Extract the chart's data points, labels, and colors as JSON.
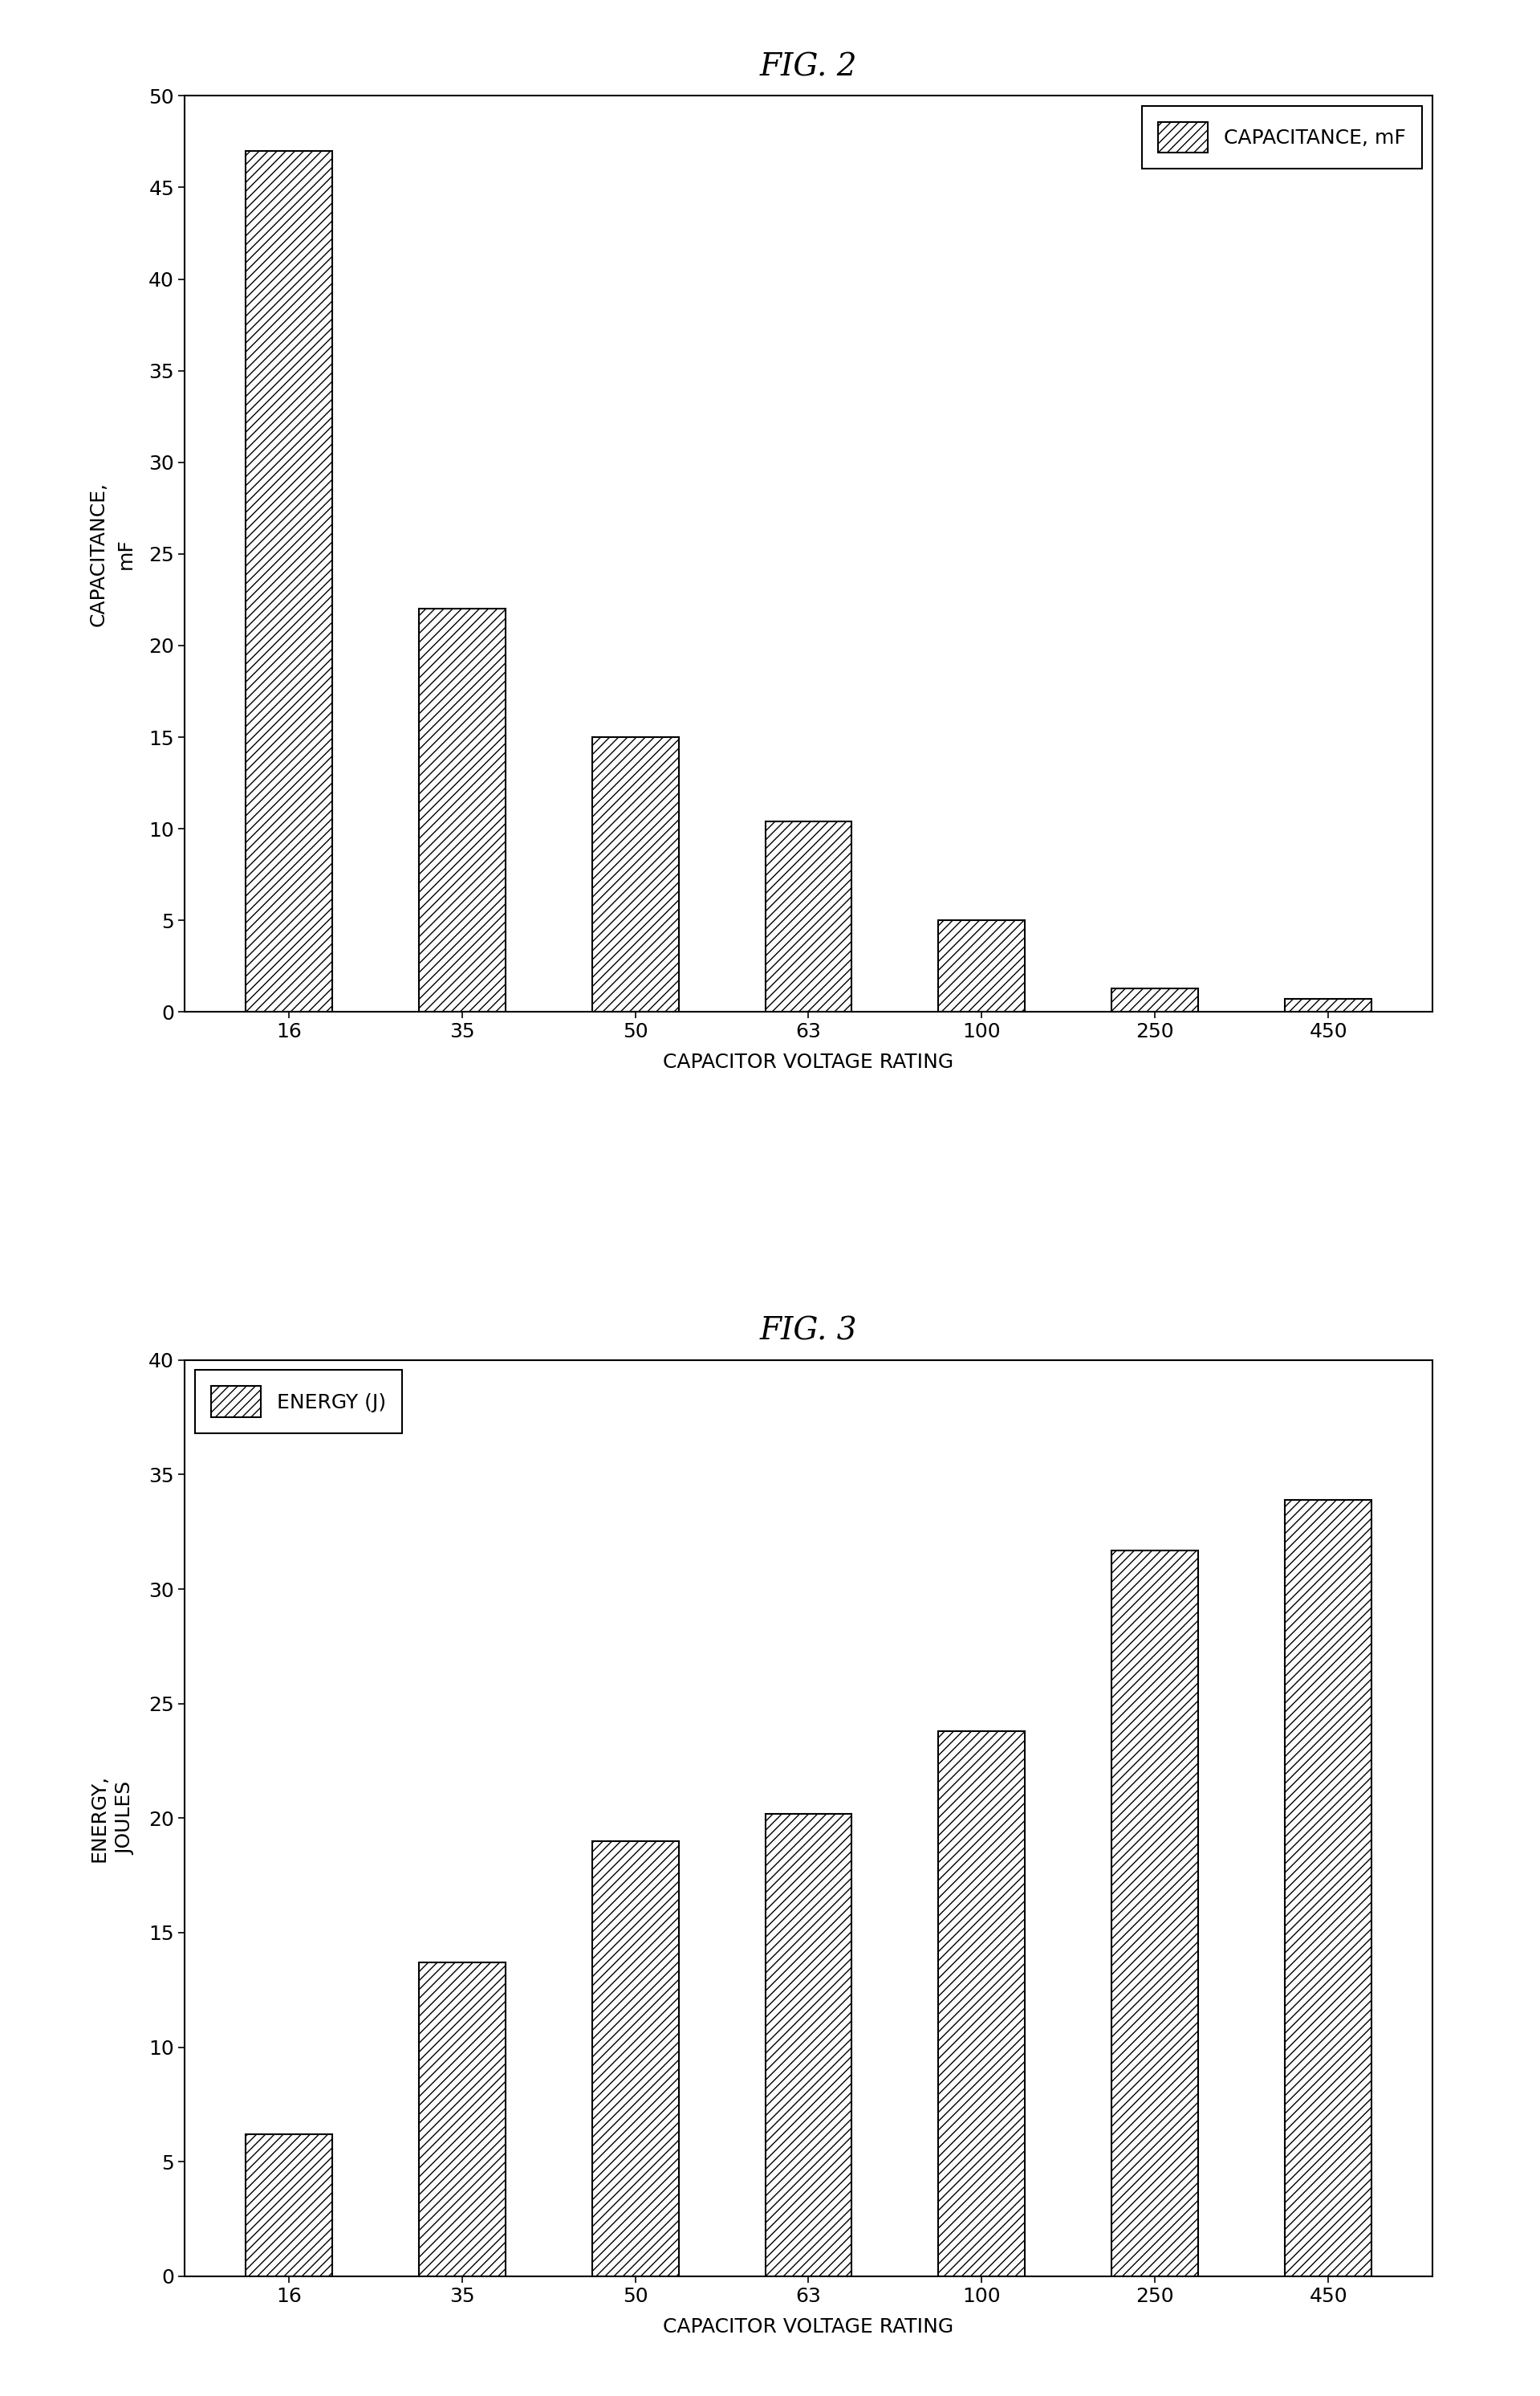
{
  "fig2": {
    "title": "FIG. 2",
    "categories": [
      "16",
      "35",
      "50",
      "63",
      "100",
      "250",
      "450"
    ],
    "values": [
      47,
      22,
      15,
      10.4,
      5.0,
      1.3,
      0.7
    ],
    "ylabel": "CAPACITANCE,\nmF",
    "xlabel": "CAPACITOR VOLTAGE RATING",
    "ylim": [
      0,
      50
    ],
    "yticks": [
      0,
      5,
      10,
      15,
      20,
      25,
      30,
      35,
      40,
      45,
      50
    ],
    "legend_label": "CAPACITANCE, mF",
    "legend_loc": "upper right",
    "hatch": "///",
    "bar_color": "white",
    "bar_edgecolor": "black"
  },
  "fig3": {
    "title": "FIG. 3",
    "categories": [
      "16",
      "35",
      "50",
      "63",
      "100",
      "250",
      "450"
    ],
    "values": [
      6.2,
      13.7,
      19.0,
      20.2,
      23.8,
      31.7,
      33.9
    ],
    "ylabel": "ENERGY,\nJOULES",
    "xlabel": "CAPACITOR VOLTAGE RATING",
    "ylim": [
      0,
      40
    ],
    "yticks": [
      0,
      5,
      10,
      15,
      20,
      25,
      30,
      35,
      40
    ],
    "legend_label": "ENERGY (J)",
    "legend_loc": "upper left",
    "hatch": "///",
    "bar_color": "white",
    "bar_edgecolor": "black"
  },
  "background_color": "#ffffff",
  "title_fontsize": 28,
  "label_fontsize": 18,
  "tick_fontsize": 18,
  "legend_fontsize": 18,
  "bar_linewidth": 1.5,
  "spine_linewidth": 1.5
}
